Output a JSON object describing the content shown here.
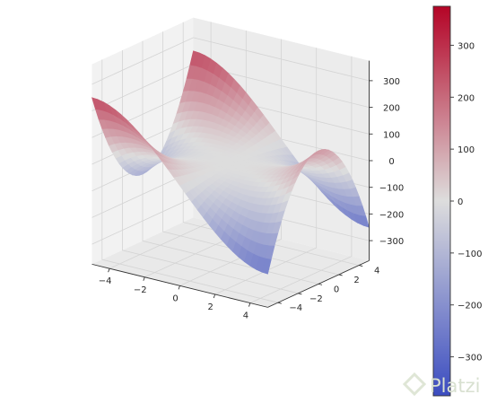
{
  "chart_data": {
    "type": "surface3d",
    "function": "z = x^3 - 3*x*y^2",
    "x_range": [
      -5,
      5
    ],
    "y_range": [
      -5,
      5
    ],
    "xticks": [
      -4,
      -2,
      0,
      2,
      4
    ],
    "yticks": [
      -4,
      -2,
      0,
      2,
      4
    ],
    "zticks": [
      -300,
      -200,
      -100,
      0,
      100,
      200,
      300
    ],
    "x_tick_labels": [
      "−4",
      "−2",
      "0",
      "2",
      "4"
    ],
    "y_tick_labels": [
      "−4",
      "−2",
      "0",
      "2",
      "4"
    ],
    "z_tick_labels": [
      "−300",
      "−200",
      "−100",
      "0",
      "100",
      "200",
      "300"
    ],
    "colorbar_ticks": [
      -300,
      -200,
      -100,
      0,
      100,
      200,
      300
    ],
    "colorbar_tick_labels": [
      "−300",
      "−200",
      "−100",
      "0",
      "100",
      "200",
      "300"
    ],
    "colorbar_range": [
      -375,
      375
    ],
    "colormap": "coolwarm",
    "colormap_low": "#3b4cc0",
    "colormap_mid": "#dddddd",
    "colormap_high": "#b40426",
    "grid": true,
    "pane_color": "#f2f2f2",
    "corner_points": [
      {
        "x": -5,
        "y": -5,
        "z": 250
      },
      {
        "x": 5,
        "y": -5,
        "z": -250
      },
      {
        "x": 5,
        "y": 5,
        "z": -250
      },
      {
        "x": -5,
        "y": 5,
        "z": 250
      }
    ],
    "edge_midpoints": [
      {
        "x": -5,
        "y": 0,
        "z": -125
      },
      {
        "x": 5,
        "y": 0,
        "z": 125
      },
      {
        "x": 0,
        "y": -5,
        "z": 0
      },
      {
        "x": 0,
        "y": 5,
        "z": 0
      }
    ]
  },
  "watermark": {
    "text": "Platzi",
    "color": "#d8e0d0"
  }
}
